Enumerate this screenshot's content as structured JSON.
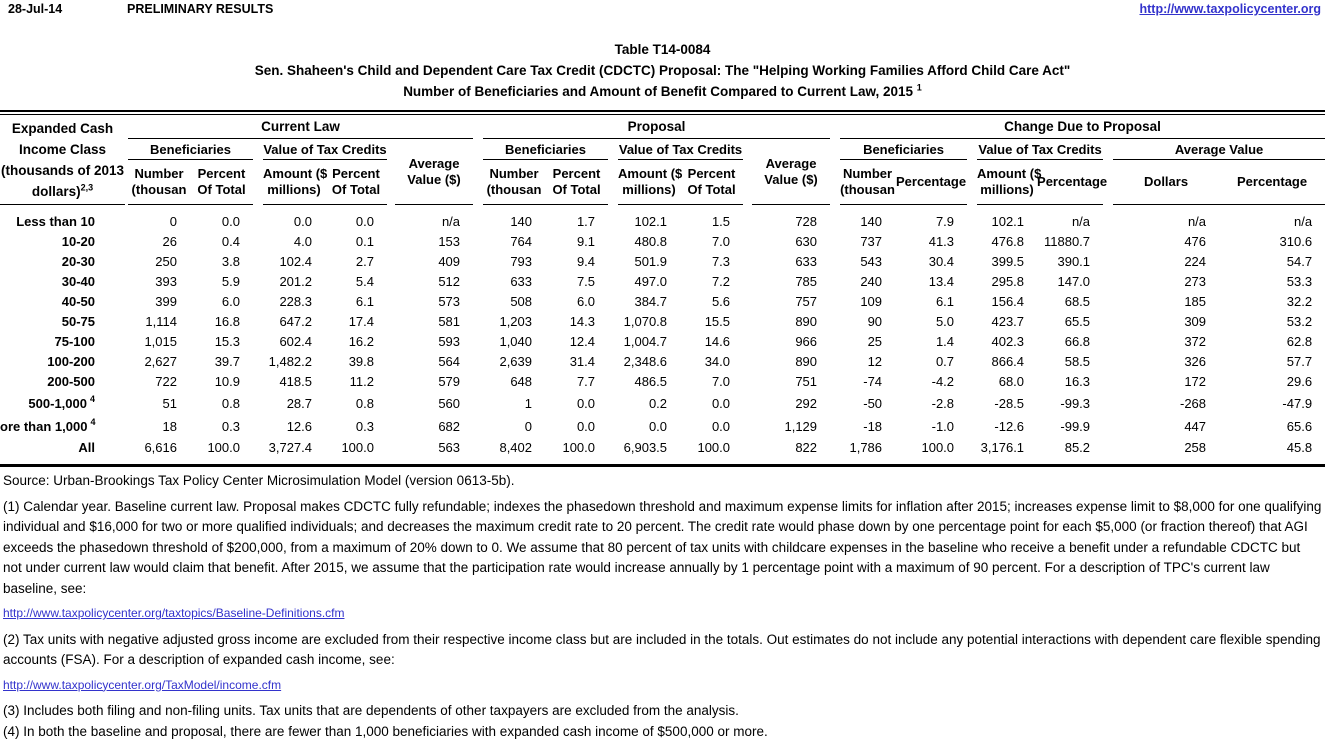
{
  "colors": {
    "link_blue": "#3333cc",
    "text": "#000000",
    "background": "#ffffff"
  },
  "topbar": {
    "date": "28-Jul-14",
    "status": "PRELIMINARY RESULTS",
    "link": "http://www.taxpolicycenter.org"
  },
  "title": {
    "line1": "Table T14-0084",
    "line2": "Sen. Shaheen's Child and Dependent Care Tax Credit (CDCTC) Proposal: The \"Helping Working Families Afford Child Care Act\"",
    "line3": "Number of Beneficiaries and Amount of Benefit Compared to Current Law, 2015",
    "line3_sup": "1"
  },
  "table": {
    "stub": {
      "l1": "Expanded Cash",
      "l2": "Income Class",
      "l3": "(thousands of 2013",
      "l4": "dollars)",
      "l4_sup": "2,3"
    },
    "group_current_law": "Current Law",
    "group_proposal": "Proposal",
    "group_change": "Change Due to Proposal",
    "sub_beneficiaries": "Beneficiaries",
    "sub_value_of_tax_credits": "Value of Tax Credits",
    "sub_average_value_l1": "Average",
    "sub_average_value_l2": "Value ($)",
    "sub_average_value": "Average Value",
    "col_number_l1": "Number",
    "col_number_l2": "(thousan",
    "col_percent_l1": "Percent",
    "col_percent_l2": "Of Total",
    "col_amount_l1": "Amount ($",
    "col_amount_l2": "millions)",
    "col_percentage": "Percentage",
    "col_dollars": "Dollars",
    "rows": [
      {
        "label": "Less than 10",
        "sup": "",
        "cl": [
          "0",
          "0.0",
          "0.0",
          "0.0",
          "n/a"
        ],
        "prop": [
          "140",
          "1.7",
          "102.1",
          "1.5",
          "728"
        ],
        "chg": [
          "140",
          "7.9",
          "102.1",
          "n/a",
          "n/a",
          "n/a"
        ]
      },
      {
        "label": "10-20",
        "sup": "",
        "cl": [
          "26",
          "0.4",
          "4.0",
          "0.1",
          "153"
        ],
        "prop": [
          "764",
          "9.1",
          "480.8",
          "7.0",
          "630"
        ],
        "chg": [
          "737",
          "41.3",
          "476.8",
          "11880.7",
          "476",
          "310.6"
        ]
      },
      {
        "label": "20-30",
        "sup": "",
        "cl": [
          "250",
          "3.8",
          "102.4",
          "2.7",
          "409"
        ],
        "prop": [
          "793",
          "9.4",
          "501.9",
          "7.3",
          "633"
        ],
        "chg": [
          "543",
          "30.4",
          "399.5",
          "390.1",
          "224",
          "54.7"
        ]
      },
      {
        "label": "30-40",
        "sup": "",
        "cl": [
          "393",
          "5.9",
          "201.2",
          "5.4",
          "512"
        ],
        "prop": [
          "633",
          "7.5",
          "497.0",
          "7.2",
          "785"
        ],
        "chg": [
          "240",
          "13.4",
          "295.8",
          "147.0",
          "273",
          "53.3"
        ]
      },
      {
        "label": "40-50",
        "sup": "",
        "cl": [
          "399",
          "6.0",
          "228.3",
          "6.1",
          "573"
        ],
        "prop": [
          "508",
          "6.0",
          "384.7",
          "5.6",
          "757"
        ],
        "chg": [
          "109",
          "6.1",
          "156.4",
          "68.5",
          "185",
          "32.2"
        ]
      },
      {
        "label": "50-75",
        "sup": "",
        "cl": [
          "1,114",
          "16.8",
          "647.2",
          "17.4",
          "581"
        ],
        "prop": [
          "1,203",
          "14.3",
          "1,070.8",
          "15.5",
          "890"
        ],
        "chg": [
          "90",
          "5.0",
          "423.7",
          "65.5",
          "309",
          "53.2"
        ]
      },
      {
        "label": "75-100",
        "sup": "",
        "cl": [
          "1,015",
          "15.3",
          "602.4",
          "16.2",
          "593"
        ],
        "prop": [
          "1,040",
          "12.4",
          "1,004.7",
          "14.6",
          "966"
        ],
        "chg": [
          "25",
          "1.4",
          "402.3",
          "66.8",
          "372",
          "62.8"
        ]
      },
      {
        "label": "100-200",
        "sup": "",
        "cl": [
          "2,627",
          "39.7",
          "1,482.2",
          "39.8",
          "564"
        ],
        "prop": [
          "2,639",
          "31.4",
          "2,348.6",
          "34.0",
          "890"
        ],
        "chg": [
          "12",
          "0.7",
          "866.4",
          "58.5",
          "326",
          "57.7"
        ]
      },
      {
        "label": "200-500",
        "sup": "",
        "cl": [
          "722",
          "10.9",
          "418.5",
          "11.2",
          "579"
        ],
        "prop": [
          "648",
          "7.7",
          "486.5",
          "7.0",
          "751"
        ],
        "chg": [
          "-74",
          "-4.2",
          "68.0",
          "16.3",
          "172",
          "29.6"
        ]
      },
      {
        "label": "500-1,000",
        "sup": "4",
        "cl": [
          "51",
          "0.8",
          "28.7",
          "0.8",
          "560"
        ],
        "prop": [
          "1",
          "0.0",
          "0.2",
          "0.0",
          "292"
        ],
        "chg": [
          "-50",
          "-2.8",
          "-28.5",
          "-99.3",
          "-268",
          "-47.9"
        ]
      },
      {
        "label": "ore than 1,000",
        "sup": "4",
        "cl": [
          "18",
          "0.3",
          "12.6",
          "0.3",
          "682"
        ],
        "prop": [
          "0",
          "0.0",
          "0.0",
          "0.0",
          "1,129"
        ],
        "chg": [
          "-18",
          "-1.0",
          "-12.6",
          "-99.9",
          "447",
          "65.6"
        ]
      },
      {
        "label": "All",
        "sup": "",
        "cl": [
          "6,616",
          "100.0",
          "3,727.4",
          "100.0",
          "563"
        ],
        "prop": [
          "8,402",
          "100.0",
          "6,903.5",
          "100.0",
          "822"
        ],
        "chg": [
          "1,786",
          "100.0",
          "3,176.1",
          "85.2",
          "258",
          "45.8"
        ]
      }
    ]
  },
  "footer": {
    "source": "Source: Urban-Brookings Tax Policy Center Microsimulation Model (version 0613-5b).",
    "note1": "(1) Calendar year. Baseline current law. Proposal makes CDCTC fully refundable; indexes the phasedown threshold and maximum expense limits for inflation after 2015; increases expense limit to $8,000 for one qualifying individual and $16,000 for two or more qualified individuals; and decreases the maximum credit rate to 20 percent. The credit rate would phase down by one percentage point for each $5,000 (or fraction thereof) that AGI exceeds the phasedown threshold of $200,000, from a maximum of 20% down to 0. We assume that 80 percent of tax units with childcare expenses in the baseline who receive a benefit under a refundable CDCTC but not under current law would claim that benefit. After 2015, we assume that the participation rate would increase annually by 1 percentage point with a maximum of 90 percent. For a description of TPC's current law baseline, see:",
    "link1": "http://www.taxpolicycenter.org/taxtopics/Baseline-Definitions.cfm",
    "note2": "(2) Tax units with negative adjusted gross income are excluded from their respective income class but are included in the totals. Out estimates do not include any potential interactions with dependent care flexible spending accounts (FSA). For a description of expanded cash income, see:",
    "link2": "http://www.taxpolicycenter.org/TaxModel/income.cfm",
    "note3": "(3) Includes both filing and non-filing units.  Tax units that are dependents of other taxpayers are excluded from the analysis.",
    "note4": "(4) In both the baseline and proposal, there are fewer than 1,000 beneficiaries with expanded cash income of $500,000 or more."
  }
}
